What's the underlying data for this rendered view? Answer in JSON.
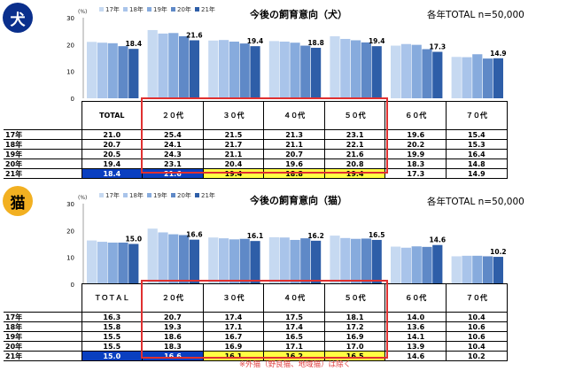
{
  "charts": [
    {
      "badge": "犬",
      "badge_color": "#0a2f8c",
      "title": "今後の飼育意向（犬）",
      "total_note": "各年TOTAL n=50,000",
      "unit": "(%)",
      "footnote": ""
    },
    {
      "badge": "猫",
      "badge_color": "#f2b021",
      "title": "今後の飼育意向（猫）",
      "total_note": "各年TOTAL n=50,000",
      "unit": "(%)",
      "footnote": "※外猫（野良猫、地域猫）は除く"
    }
  ],
  "chart_data": [
    {
      "type": "bar",
      "title": "今後の飼育意向（犬）",
      "ylabel": "(%)",
      "ylim": [
        0,
        30
      ],
      "yticks": [
        0,
        10,
        20,
        30
      ],
      "categories": [
        "TOTAL",
        "２０代",
        "３０代",
        "４０代",
        "５０代",
        "６０代",
        "７０代"
      ],
      "series": [
        {
          "name": "17年",
          "color": "#c6d9f1",
          "values": [
            21.0,
            25.4,
            21.5,
            21.3,
            23.1,
            19.6,
            15.4
          ]
        },
        {
          "name": "18年",
          "color": "#a9c4ea",
          "values": [
            20.7,
            24.1,
            21.7,
            21.1,
            22.1,
            20.2,
            15.3
          ]
        },
        {
          "name": "19年",
          "color": "#87abdd",
          "values": [
            20.5,
            24.3,
            21.1,
            20.7,
            21.6,
            19.9,
            16.4
          ]
        },
        {
          "name": "20年",
          "color": "#5f89c7",
          "values": [
            19.4,
            23.1,
            20.4,
            19.6,
            20.8,
            18.3,
            14.8
          ]
        },
        {
          "name": "21年",
          "color": "#2e5ea8",
          "values": [
            18.4,
            21.6,
            19.4,
            18.8,
            19.4,
            17.3,
            14.9
          ]
        }
      ],
      "legend_position": "top-left",
      "grid": false
    },
    {
      "type": "bar",
      "title": "今後の飼育意向（猫）",
      "ylabel": "(%)",
      "ylim": [
        0,
        30
      ],
      "yticks": [
        0,
        10,
        20,
        30
      ],
      "categories": [
        "ＴＯＴＡＬ",
        "２０代",
        "３０代",
        "４０代",
        "５０代",
        "６０代",
        "７０代"
      ],
      "series": [
        {
          "name": "17年",
          "color": "#c6d9f1",
          "values": [
            16.3,
            20.7,
            17.4,
            17.5,
            18.1,
            14.0,
            10.4
          ]
        },
        {
          "name": "18年",
          "color": "#a9c4ea",
          "values": [
            15.8,
            19.3,
            17.1,
            17.4,
            17.2,
            13.6,
            10.6
          ]
        },
        {
          "name": "19年",
          "color": "#87abdd",
          "values": [
            15.5,
            18.6,
            16.7,
            16.5,
            16.9,
            14.1,
            10.6
          ]
        },
        {
          "name": "20年",
          "color": "#5f89c7",
          "values": [
            15.5,
            18.3,
            16.9,
            17.1,
            17.0,
            13.9,
            10.4
          ]
        },
        {
          "name": "21年",
          "color": "#2e5ea8",
          "values": [
            15.0,
            16.6,
            16.1,
            16.2,
            16.5,
            14.6,
            10.2
          ]
        }
      ],
      "legend_position": "top-left",
      "grid": false,
      "highlight": {
        "blue": [
          "２０代"
        ],
        "yellow": [
          "３０代",
          "４０代",
          "５０代"
        ]
      }
    }
  ]
}
